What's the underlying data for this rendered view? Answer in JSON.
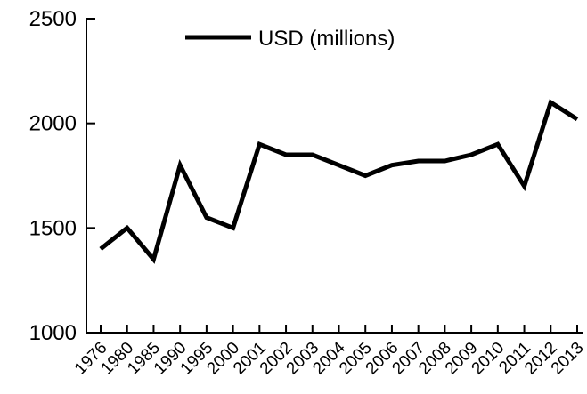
{
  "chart_data": {
    "type": "line",
    "categories": [
      "1976",
      "1980",
      "1985",
      "1990",
      "1995",
      "2000",
      "2001",
      "2002",
      "2003",
      "2004",
      "2005",
      "2006",
      "2007",
      "2008",
      "2009",
      "2010",
      "2011",
      "2012",
      "2013"
    ],
    "series": [
      {
        "name": "USD (millions)",
        "values": [
          1400,
          1500,
          1350,
          1800,
          1550,
          1500,
          1900,
          1850,
          1850,
          1800,
          1750,
          1800,
          1820,
          1820,
          1850,
          1900,
          1700,
          2100,
          2020
        ],
        "color": "#000000"
      }
    ],
    "ylim": [
      1000,
      2500
    ],
    "yticks": [
      1000,
      1500,
      2000,
      2500
    ],
    "grid": false,
    "legend_position": "top-center"
  }
}
